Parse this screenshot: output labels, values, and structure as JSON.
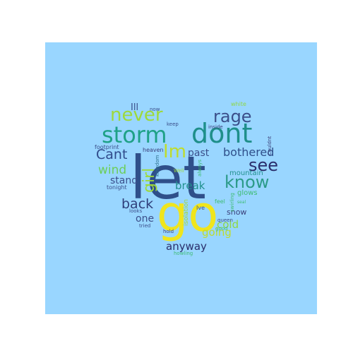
{
  "colors": {
    "figure_background": "#ffffff",
    "panel_background": "#99d6ff"
  },
  "shape": "heart",
  "words": [
    {
      "text": "let",
      "color": "#2f4f8a"
    },
    {
      "text": "go",
      "color": "#f0e51c"
    },
    {
      "text": "dont",
      "color": "#1f8f8a"
    },
    {
      "text": "storm",
      "color": "#1fa187"
    },
    {
      "text": "never",
      "color": "#9ed93a"
    },
    {
      "text": "rage",
      "color": "#3b4f8a"
    },
    {
      "text": "know",
      "color": "#2b9a88"
    },
    {
      "text": "see",
      "color": "#2a2e6b"
    },
    {
      "text": "Im",
      "color": "#bfdc2c"
    },
    {
      "text": "Cant",
      "color": "#2f4a8a"
    },
    {
      "text": "wind",
      "color": "#6cce59"
    },
    {
      "text": "girl",
      "color": "#9ed93a"
    },
    {
      "text": "back",
      "color": "#2f3f7a"
    },
    {
      "text": "bothered",
      "color": "#2f4f8a"
    },
    {
      "text": "stand",
      "color": "#3b4f8a"
    },
    {
      "text": "break",
      "color": "#21908d"
    },
    {
      "text": "cold",
      "color": "#8fd744"
    },
    {
      "text": "going",
      "color": "#bfdc2c"
    },
    {
      "text": "anyway",
      "color": "#2a2e6b"
    },
    {
      "text": "one",
      "color": "#3b4f8a"
    },
    {
      "text": "past",
      "color": "#3b4f8a"
    },
    {
      "text": "Ill",
      "color": "#3b4f8a"
    },
    {
      "text": "snow",
      "color": "#3b3f7a"
    },
    {
      "text": "mountain",
      "color": "#21908d"
    },
    {
      "text": "glows",
      "color": "#3fbc73"
    },
    {
      "text": "footprint",
      "color": "#3b4f8a"
    },
    {
      "text": "tonight",
      "color": "#3b4f8a"
    },
    {
      "text": "heaven",
      "color": "#3b3f7a"
    },
    {
      "text": "keep",
      "color": "#3b4f8a"
    },
    {
      "text": "now",
      "color": "#3b4f8a"
    },
    {
      "text": "white",
      "color": "#8fd744"
    },
    {
      "text": "inside",
      "color": "#3b3f7a"
    },
    {
      "text": "Couldnt",
      "color": "#3b3f7a"
    },
    {
      "text": "kingdom",
      "color": "#2b6f8a"
    },
    {
      "text": "Well",
      "color": "#9ed93a"
    },
    {
      "text": "always",
      "color": "#3fbc73"
    },
    {
      "text": "isolation",
      "color": "#a0da39"
    },
    {
      "text": "Ive",
      "color": "#3b4f8a"
    },
    {
      "text": "feel",
      "color": "#3fbc73"
    },
    {
      "text": "swirling",
      "color": "#3fbc73"
    },
    {
      "text": "queen",
      "color": "#3b4f8a"
    },
    {
      "text": "good",
      "color": "#3fbc73"
    },
    {
      "text": "looks",
      "color": "#3b4f8a"
    },
    {
      "text": "tried",
      "color": "#3b4f8a"
    },
    {
      "text": "hold",
      "color": "#3b3f7a"
    },
    {
      "text": "howling",
      "color": "#3fbc73"
    },
    {
      "text": "seal",
      "color": "#3fbc73"
    }
  ]
}
